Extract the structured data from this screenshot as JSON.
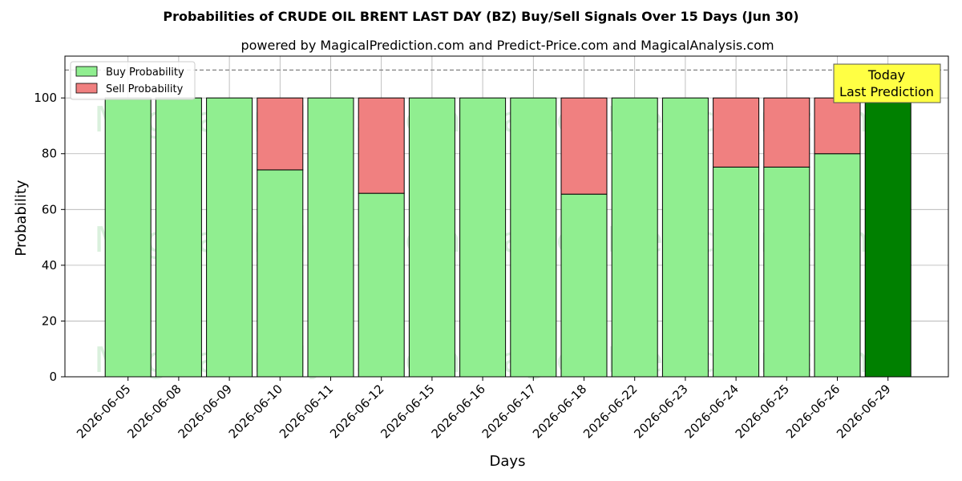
{
  "chart_data": {
    "type": "bar",
    "stacked": true,
    "title": "Probabilities of CRUDE OIL BRENT LAST DAY (BZ) Buy/Sell Signals Over 15 Days (Jun 30)",
    "subtitle": "powered by MagicalPrediction.com and Predict-Price.com and MagicalAnalysis.com",
    "xlabel": "Days",
    "ylabel": "Probability",
    "ylim": [
      0,
      115
    ],
    "yticks": [
      0,
      20,
      40,
      60,
      80,
      100
    ],
    "grid": true,
    "legend_position": "top-left",
    "categories": [
      "2026-06-05",
      "2026-06-08",
      "2026-06-09",
      "2026-06-10",
      "2026-06-11",
      "2026-06-12",
      "2026-06-15",
      "2026-06-16",
      "2026-06-17",
      "2026-06-18",
      "2026-06-22",
      "2026-06-23",
      "2026-06-24",
      "2026-06-25",
      "2026-06-26",
      "2026-06-29"
    ],
    "series": [
      {
        "name": "Buy Probability",
        "color": "#90ee90",
        "values": [
          100,
          100,
          100,
          74.2,
          100,
          65.8,
          100,
          100,
          100,
          65.5,
          100,
          100,
          75.2,
          75.2,
          80,
          100
        ]
      },
      {
        "name": "Sell Probability",
        "color": "#f08080",
        "values": [
          0,
          0,
          0,
          25.8,
          0,
          34.2,
          0,
          0,
          0,
          34.5,
          0,
          0,
          24.8,
          24.8,
          20,
          0
        ]
      }
    ],
    "highlight_color": "#008000",
    "highlight_index": 15,
    "reference_line": 110,
    "annotation": {
      "line1": "Today",
      "line2": "Last Prediction",
      "color": "#ffff44"
    },
    "watermarks": [
      "MagicalAnalysis.com",
      "MagicalPrediction.com"
    ]
  }
}
